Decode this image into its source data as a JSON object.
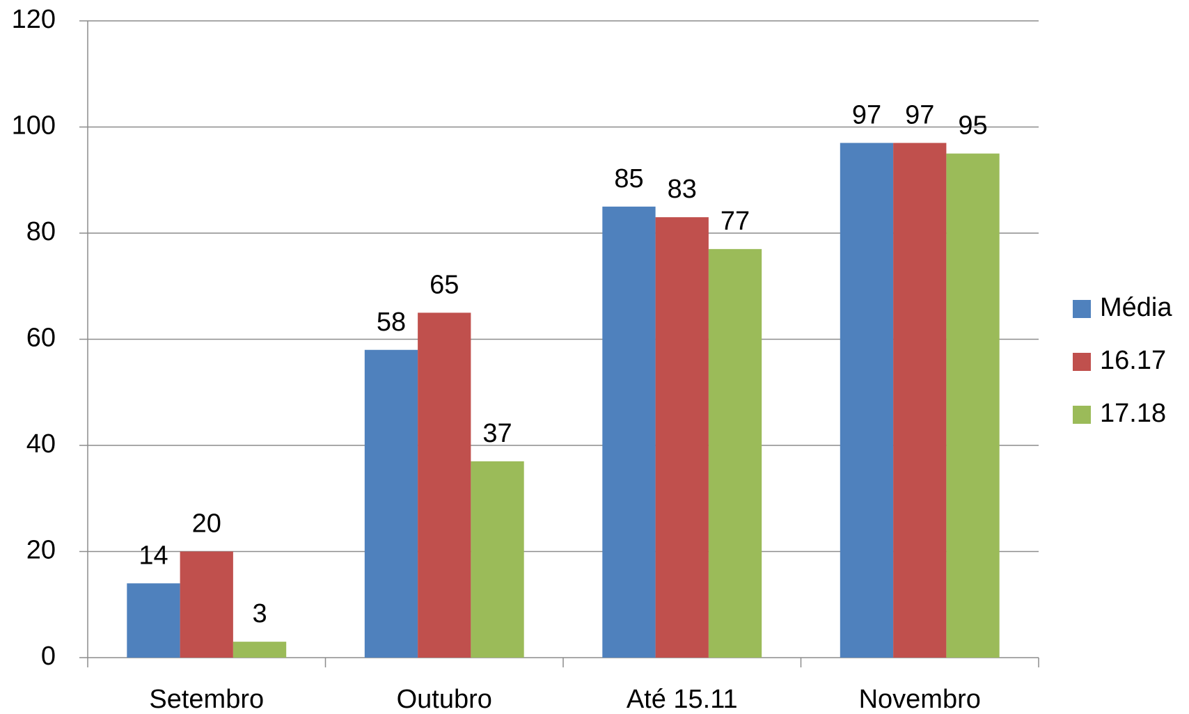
{
  "chart_data": {
    "type": "bar",
    "categories": [
      "Setembro",
      "Outubro",
      "Até 15.11",
      "Novembro"
    ],
    "series": [
      {
        "name": "Média",
        "color": "#4f81bd",
        "values": [
          14,
          58,
          85,
          97
        ]
      },
      {
        "name": "16.17",
        "color": "#c0504d",
        "values": [
          20,
          65,
          83,
          97
        ]
      },
      {
        "name": "17.18",
        "color": "#9bbb59",
        "values": [
          3,
          37,
          77,
          95
        ]
      }
    ],
    "ylim": [
      0,
      120
    ],
    "yticks": [
      0,
      20,
      40,
      60,
      80,
      100,
      120
    ],
    "grid": true,
    "legend": "right"
  }
}
